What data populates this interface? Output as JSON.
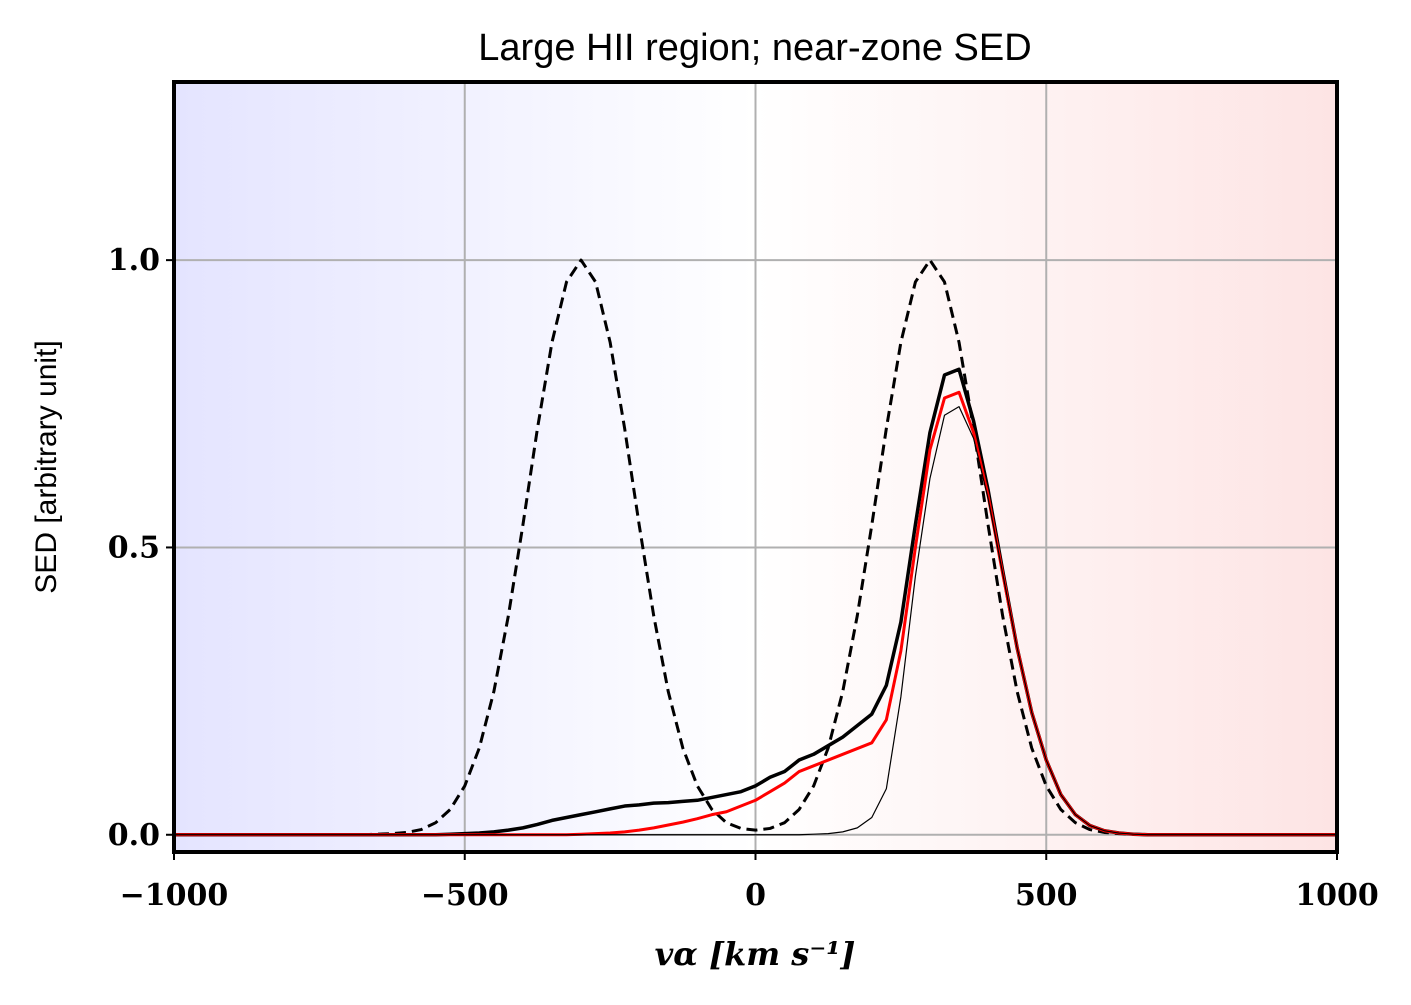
{
  "chart_data": {
    "type": "line",
    "title": "Large HII region; near-zone SED",
    "x_label": "vα [km s⁻¹]",
    "y_label": "SED [arbitrary unit]",
    "xlim": [
      -1000,
      1000
    ],
    "ylim": [
      -0.03,
      1.31
    ],
    "xticks": [
      {
        "value": -1000,
        "label": "−1000"
      },
      {
        "value": -500,
        "label": "−500"
      },
      0,
      500,
      1000
    ],
    "yticks": [
      {
        "value": 0,
        "label": "0.0"
      },
      0.5,
      {
        "value": 1,
        "label": "1.0"
      }
    ],
    "grid": true,
    "x": [
      -1000,
      -975,
      -950,
      -925,
      -900,
      -875,
      -850,
      -825,
      -800,
      -775,
      -750,
      -725,
      -700,
      -675,
      -650,
      -625,
      -600,
      -575,
      -550,
      -525,
      -500,
      -475,
      -450,
      -425,
      -400,
      -375,
      -350,
      -325,
      -300,
      -275,
      -250,
      -225,
      -200,
      -175,
      -150,
      -125,
      -100,
      -75,
      -50,
      -25,
      0,
      25,
      50,
      75,
      100,
      125,
      150,
      175,
      200,
      225,
      250,
      275,
      300,
      325,
      350,
      375,
      400,
      425,
      450,
      475,
      500,
      525,
      550,
      575,
      600,
      625,
      650,
      675,
      700,
      725,
      750,
      775,
      800,
      825,
      850,
      875,
      900,
      925,
      950,
      975,
      1000
    ],
    "series": [
      {
        "color": "#000000",
        "linestyle": "dashed",
        "linewidth": 3,
        "values": [
          0,
          0,
          0,
          0,
          0,
          0,
          0,
          0,
          0,
          0,
          0,
          0,
          0,
          0,
          0.001,
          0.002,
          0.004,
          0.009,
          0.021,
          0.044,
          0.085,
          0.151,
          0.249,
          0.381,
          0.539,
          0.707,
          0.857,
          0.962,
          1,
          0.962,
          0.857,
          0.707,
          0.539,
          0.381,
          0.249,
          0.151,
          0.085,
          0.044,
          0.021,
          0.011,
          0.008,
          0.011,
          0.021,
          0.044,
          0.085,
          0.151,
          0.249,
          0.381,
          0.539,
          0.707,
          0.857,
          0.962,
          1,
          0.962,
          0.857,
          0.707,
          0.539,
          0.381,
          0.249,
          0.151,
          0.085,
          0.044,
          0.021,
          0.009,
          0.004,
          0.002,
          0.001,
          0,
          0,
          0,
          0,
          0,
          0,
          0,
          0,
          0,
          0,
          0,
          0,
          0,
          0
        ]
      },
      {
        "color": "#000000",
        "linestyle": "solid",
        "linewidth": 3.5,
        "values": [
          0,
          0,
          0,
          0,
          0,
          0,
          0,
          0,
          0,
          0,
          0,
          0,
          0,
          0,
          0,
          0,
          0,
          0,
          0,
          0.001,
          0.002,
          0.003,
          0.005,
          0.008,
          0.012,
          0.018,
          0.025,
          0.03,
          0.035,
          0.04,
          0.045,
          0.05,
          0.052,
          0.055,
          0.056,
          0.058,
          0.06,
          0.065,
          0.07,
          0.075,
          0.085,
          0.1,
          0.11,
          0.13,
          0.14,
          0.155,
          0.17,
          0.19,
          0.21,
          0.26,
          0.37,
          0.54,
          0.7,
          0.8,
          0.81,
          0.72,
          0.6,
          0.46,
          0.325,
          0.213,
          0.13,
          0.07,
          0.035,
          0.016,
          0.007,
          0.003,
          0.001,
          0,
          0,
          0,
          0,
          0,
          0,
          0,
          0,
          0,
          0,
          0,
          0,
          0,
          0
        ]
      },
      {
        "color": "#ff0000",
        "linestyle": "solid",
        "linewidth": 3,
        "values": [
          0,
          0,
          0,
          0,
          0,
          0,
          0,
          0,
          0,
          0,
          0,
          0,
          0,
          0,
          0,
          0,
          0,
          0,
          0,
          0,
          0,
          0,
          0,
          0,
          0,
          0,
          0,
          0,
          0.001,
          0.002,
          0.003,
          0.005,
          0.008,
          0.012,
          0.017,
          0.022,
          0.028,
          0.035,
          0.04,
          0.05,
          0.06,
          0.075,
          0.09,
          0.11,
          0.12,
          0.13,
          0.14,
          0.15,
          0.16,
          0.2,
          0.32,
          0.5,
          0.67,
          0.76,
          0.77,
          0.7,
          0.59,
          0.455,
          0.325,
          0.213,
          0.13,
          0.07,
          0.035,
          0.016,
          0.007,
          0.003,
          0.001,
          0,
          0,
          0,
          0,
          0,
          0,
          0,
          0,
          0,
          0,
          0,
          0,
          0,
          0
        ]
      },
      {
        "color": "#000000",
        "linestyle": "solid",
        "linewidth": 1.2,
        "values": [
          0,
          0,
          0,
          0,
          0,
          0,
          0,
          0,
          0,
          0,
          0,
          0,
          0,
          0,
          0,
          0,
          0,
          0,
          0,
          0,
          0,
          0,
          0,
          0,
          0,
          0,
          0,
          0,
          0,
          0,
          0,
          0,
          0,
          0,
          0,
          0,
          0,
          0,
          0,
          0,
          0,
          0,
          0,
          0,
          0.001,
          0.002,
          0.005,
          0.012,
          0.03,
          0.08,
          0.24,
          0.45,
          0.62,
          0.73,
          0.745,
          0.69,
          0.585,
          0.455,
          0.325,
          0.213,
          0.13,
          0.07,
          0.035,
          0.016,
          0.007,
          0.003,
          0.001,
          0,
          0,
          0,
          0,
          0,
          0,
          0,
          0,
          0,
          0,
          0,
          0,
          0,
          0
        ]
      }
    ]
  }
}
